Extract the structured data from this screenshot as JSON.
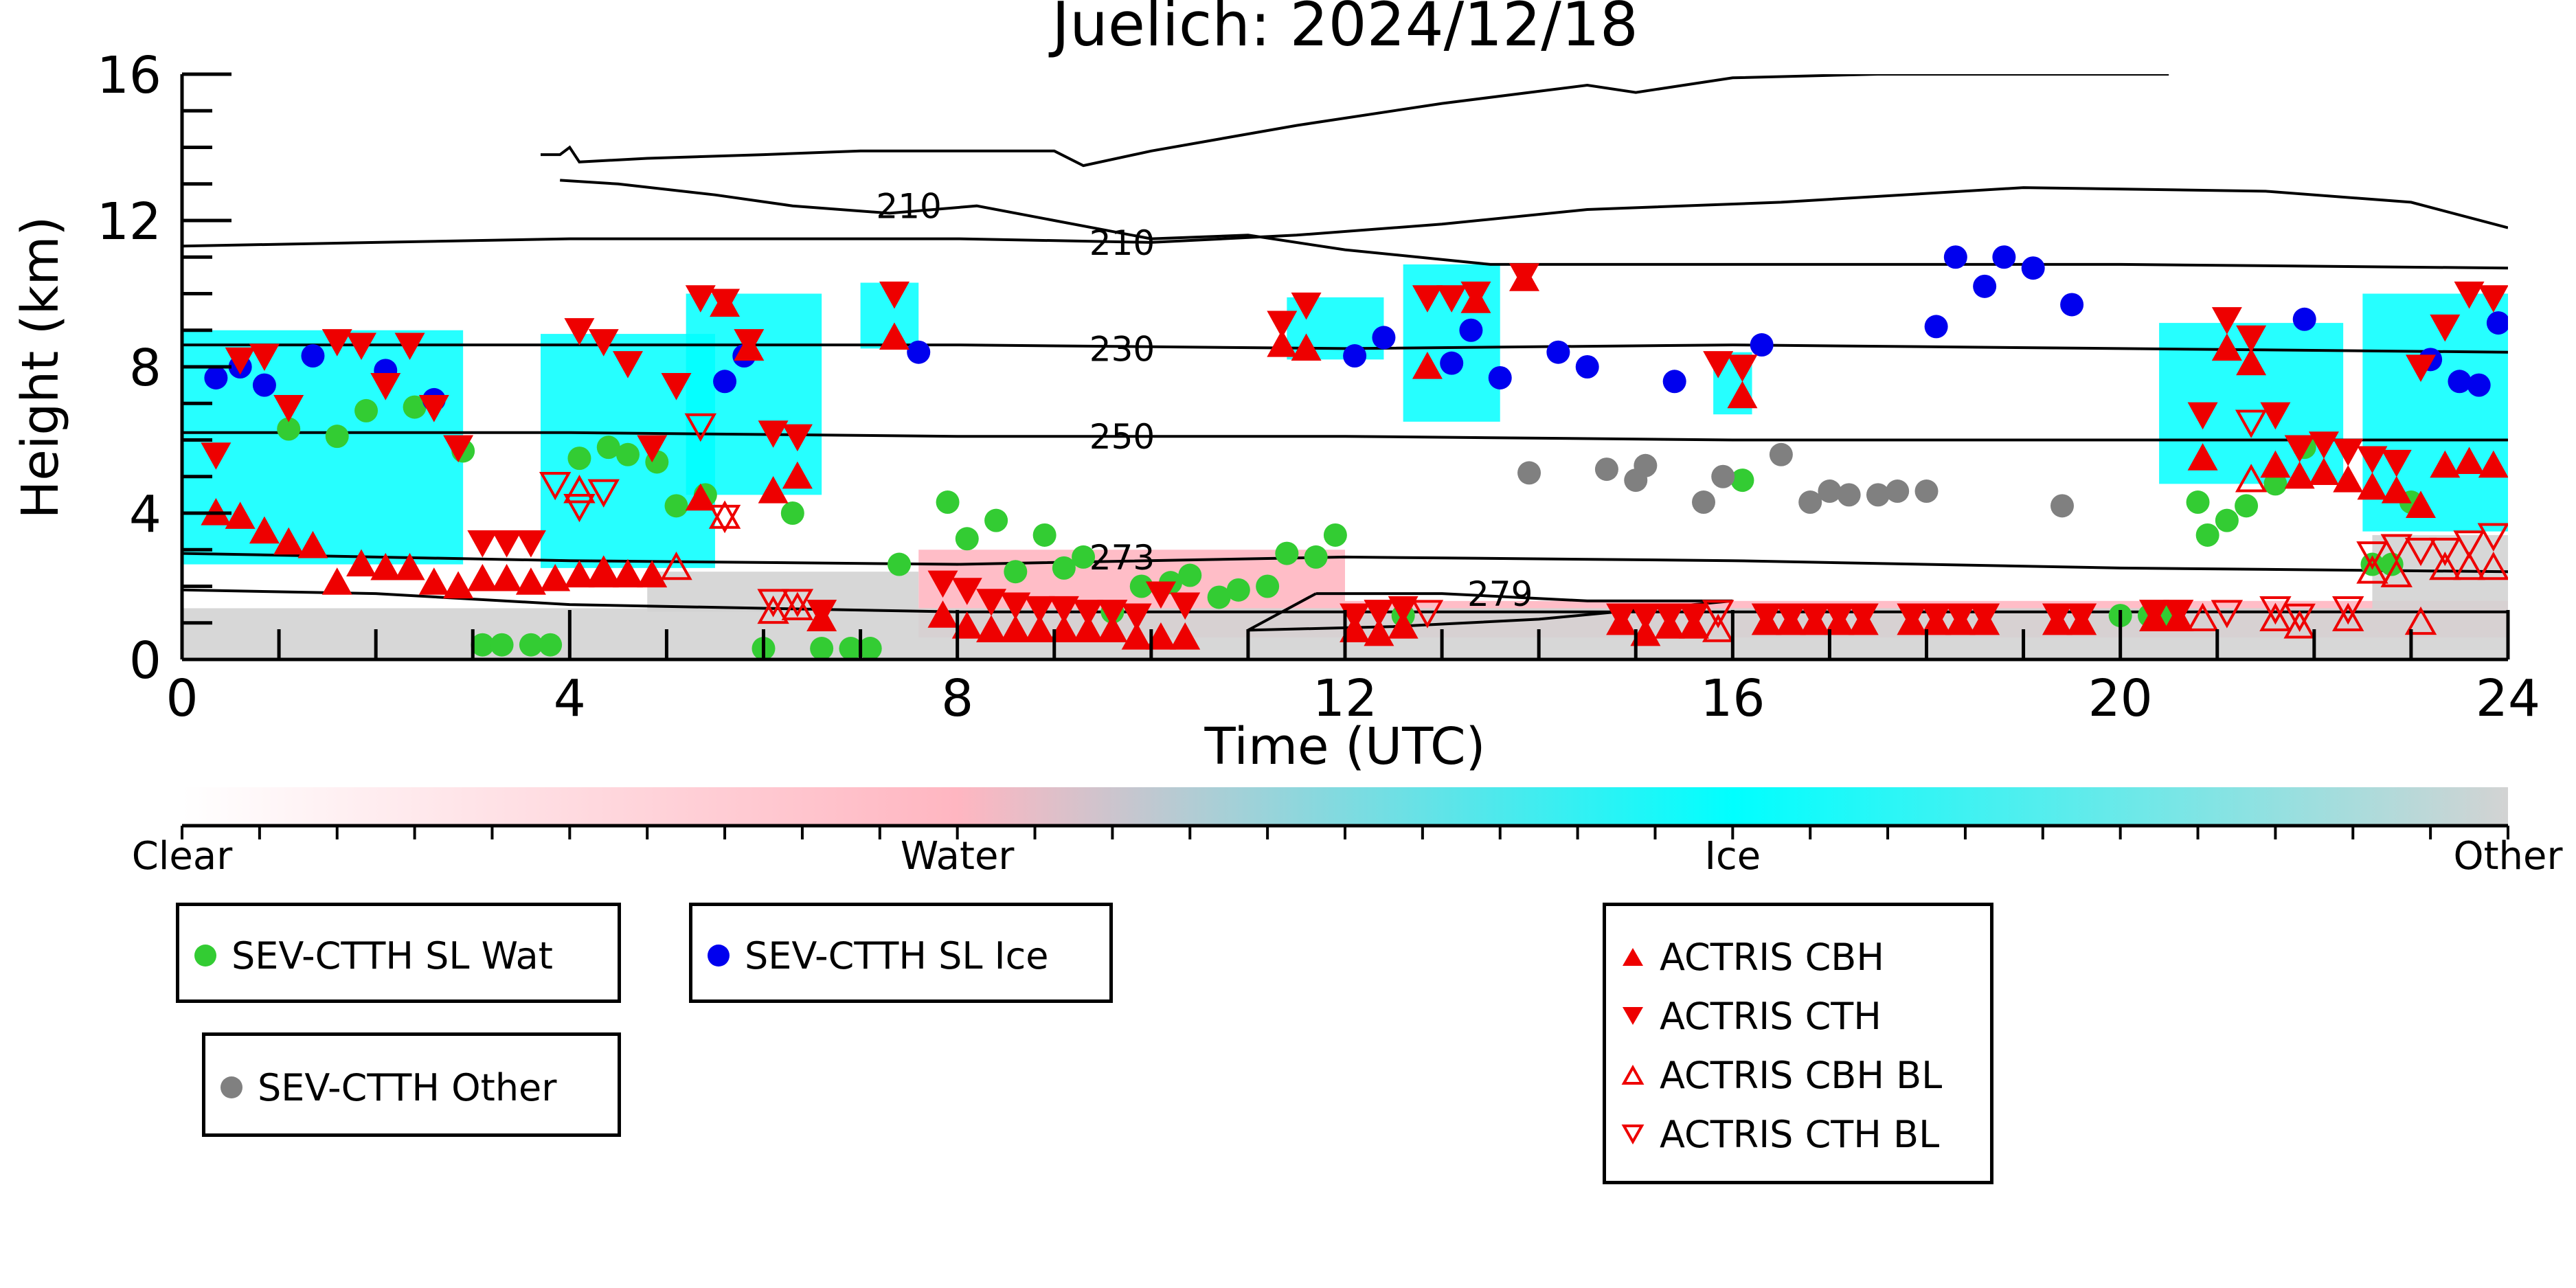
{
  "chart_data": {
    "type": "scatter",
    "title": "Juelich: 2024/12/18",
    "xlabel": "Time (UTC)",
    "ylabel": "Height (km)",
    "xlim": [
      0,
      24
    ],
    "ylim": [
      0,
      16
    ],
    "xticks": [
      0,
      4,
      8,
      12,
      16,
      20,
      24
    ],
    "yticks": [
      0,
      4,
      8,
      12,
      16
    ],
    "colorbar": {
      "ticks": [
        "Clear",
        "Water",
        "Ice",
        "Other"
      ],
      "colors": [
        "#ffffff",
        "#ffb6c1",
        "#00ffff",
        "#d3d3d3"
      ]
    },
    "background_regions": [
      {
        "class": "Ice",
        "x0": 0.0,
        "x1": 2.9,
        "y0": 2.6,
        "y1": 9.0
      },
      {
        "class": "Ice",
        "x0": 3.7,
        "x1": 5.5,
        "y0": 2.5,
        "y1": 8.9
      },
      {
        "class": "Ice",
        "x0": 5.2,
        "x1": 6.6,
        "y0": 4.5,
        "y1": 10.0
      },
      {
        "class": "Ice",
        "x0": 7.0,
        "x1": 7.6,
        "y0": 8.5,
        "y1": 10.3
      },
      {
        "class": "Ice",
        "x0": 11.4,
        "x1": 12.4,
        "y0": 8.2,
        "y1": 9.9
      },
      {
        "class": "Ice",
        "x0": 12.6,
        "x1": 13.6,
        "y0": 6.5,
        "y1": 10.8
      },
      {
        "class": "Ice",
        "x0": 15.8,
        "x1": 16.2,
        "y0": 6.7,
        "y1": 8.4
      },
      {
        "class": "Ice",
        "x0": 20.4,
        "x1": 22.3,
        "y0": 4.8,
        "y1": 9.2
      },
      {
        "class": "Ice",
        "x0": 22.5,
        "x1": 24.0,
        "y0": 3.5,
        "y1": 10.0
      },
      {
        "class": "Water",
        "x0": 7.6,
        "x1": 12.0,
        "y0": 0.6,
        "y1": 3.0
      },
      {
        "class": "Water",
        "x0": 12.0,
        "x1": 24.0,
        "y0": 0.6,
        "y1": 1.6
      },
      {
        "class": "Other",
        "x0": 0.0,
        "x1": 24.0,
        "y0": 0.0,
        "y1": 1.4
      },
      {
        "class": "Other",
        "x0": 4.8,
        "x1": 7.6,
        "y0": 1.3,
        "y1": 2.4
      },
      {
        "class": "Other",
        "x0": 22.6,
        "x1": 24.0,
        "y0": 1.4,
        "y1": 3.4
      }
    ],
    "contours": [
      {
        "label": "210",
        "label_x": 7.5,
        "label_y": 12.4,
        "points": [
          [
            3.9,
            13.1
          ],
          [
            4.5,
            13.0
          ],
          [
            5.5,
            12.7
          ],
          [
            6.3,
            12.4
          ],
          [
            7.3,
            12.2
          ],
          [
            8.2,
            12.4
          ],
          [
            9.0,
            12.0
          ],
          [
            10.0,
            11.5
          ],
          [
            11.0,
            11.6
          ],
          [
            12.0,
            11.2
          ],
          [
            13.5,
            10.8
          ],
          [
            16.0,
            10.8
          ],
          [
            20.0,
            10.8
          ],
          [
            24.0,
            10.7
          ]
        ]
      },
      {
        "label": "210",
        "label_x": 9.7,
        "label_y": 11.4,
        "points": [
          [
            0.0,
            11.3
          ],
          [
            2.0,
            11.4
          ],
          [
            4.0,
            11.5
          ],
          [
            6.0,
            11.5
          ],
          [
            8.0,
            11.5
          ],
          [
            10.0,
            11.4
          ],
          [
            11.5,
            11.6
          ],
          [
            13.0,
            11.9
          ],
          [
            14.5,
            12.3
          ],
          [
            16.5,
            12.5
          ],
          [
            19.0,
            12.9
          ],
          [
            21.5,
            12.8
          ],
          [
            23.0,
            12.5
          ],
          [
            24.0,
            11.8
          ]
        ]
      },
      {
        "label": "",
        "label_x": 0,
        "label_y": 0,
        "points": [
          [
            3.7,
            13.8
          ],
          [
            3.9,
            13.8
          ],
          [
            4.0,
            14.0
          ],
          [
            4.1,
            13.6
          ],
          [
            4.8,
            13.7
          ],
          [
            6.0,
            13.8
          ],
          [
            7.0,
            13.9
          ],
          [
            8.0,
            13.9
          ],
          [
            9.0,
            13.9
          ],
          [
            9.3,
            13.5
          ],
          [
            10.0,
            13.9
          ],
          [
            11.5,
            14.6
          ],
          [
            13.0,
            15.2
          ],
          [
            14.5,
            15.7
          ],
          [
            15.0,
            15.5
          ],
          [
            16.0,
            15.9
          ],
          [
            17.5,
            16.0
          ],
          [
            20.5,
            16.0
          ]
        ]
      },
      {
        "label": "230",
        "label_x": 9.7,
        "label_y": 8.5,
        "points": [
          [
            0.0,
            8.6
          ],
          [
            4.0,
            8.6
          ],
          [
            8.0,
            8.6
          ],
          [
            12.0,
            8.5
          ],
          [
            16.0,
            8.6
          ],
          [
            20.0,
            8.5
          ],
          [
            24.0,
            8.4
          ]
        ]
      },
      {
        "label": "250",
        "label_x": 9.7,
        "label_y": 6.1,
        "points": [
          [
            0.0,
            6.2
          ],
          [
            4.0,
            6.2
          ],
          [
            8.0,
            6.1
          ],
          [
            12.0,
            6.1
          ],
          [
            16.0,
            6.0
          ],
          [
            20.0,
            6.0
          ],
          [
            24.0,
            6.0
          ]
        ]
      },
      {
        "label": "273",
        "label_x": 9.7,
        "label_y": 2.8,
        "points": [
          [
            0.0,
            2.9
          ],
          [
            4.0,
            2.7
          ],
          [
            8.0,
            2.6
          ],
          [
            12.0,
            2.8
          ],
          [
            16.0,
            2.7
          ],
          [
            20.0,
            2.5
          ],
          [
            24.0,
            2.4
          ]
        ]
      },
      {
        "label": "279",
        "label_x": 13.6,
        "label_y": 1.8,
        "points": [
          [
            0.0,
            1.9
          ],
          [
            2.0,
            1.8
          ],
          [
            4.0,
            1.5
          ],
          [
            6.0,
            1.4
          ],
          [
            8.0,
            1.3
          ],
          [
            10.0,
            1.3
          ],
          [
            12.0,
            1.3
          ],
          [
            16.0,
            1.3
          ],
          [
            20.0,
            1.3
          ],
          [
            24.0,
            1.3
          ]
        ]
      },
      {
        "label": "",
        "label_x": 0,
        "label_y": 0,
        "points": [
          [
            11.7,
            1.8
          ],
          [
            13.0,
            1.8
          ],
          [
            14.5,
            1.6
          ],
          [
            16.0,
            1.6
          ],
          [
            14.0,
            1.1
          ],
          [
            12.5,
            0.9
          ],
          [
            11.0,
            0.8
          ],
          [
            11.7,
            1.8
          ]
        ]
      }
    ],
    "series": [
      {
        "name": "SEV-CTTH SL Wat",
        "marker": "circle",
        "color": "#33cc33",
        "x": [
          1.1,
          1.6,
          1.9,
          2.4,
          2.9,
          3.1,
          3.3,
          3.6,
          3.8,
          4.1,
          4.4,
          4.6,
          4.9,
          5.1,
          5.4,
          6.0,
          6.3,
          6.6,
          6.9,
          7.1,
          7.4,
          7.9,
          8.1,
          8.4,
          8.6,
          8.9,
          9.1,
          9.3,
          9.6,
          9.9,
          10.2,
          10.4,
          10.7,
          10.9,
          11.2,
          11.4,
          11.7,
          11.9,
          12.6,
          16.1,
          20.0,
          20.3,
          20.5,
          20.8,
          20.9,
          21.1,
          21.3,
          21.6,
          21.9,
          22.6,
          22.8,
          23.0
        ],
        "y": [
          6.3,
          6.1,
          6.8,
          6.9,
          5.7,
          0.4,
          0.4,
          0.4,
          0.4,
          5.5,
          5.8,
          5.6,
          5.4,
          4.2,
          4.5,
          0.3,
          4.0,
          0.3,
          0.3,
          0.3,
          2.6,
          4.3,
          3.3,
          3.8,
          2.4,
          3.4,
          2.5,
          2.8,
          1.3,
          2.0,
          2.1,
          2.3,
          1.7,
          1.9,
          2.0,
          2.9,
          2.8,
          3.4,
          1.2,
          4.9,
          1.2,
          1.2,
          1.2,
          4.3,
          3.4,
          3.8,
          4.2,
          4.8,
          5.8,
          2.6,
          2.6,
          4.3
        ]
      },
      {
        "name": "SEV-CTTH SL Ice",
        "marker": "circle",
        "color": "#0000ee",
        "x": [
          0.35,
          0.6,
          0.85,
          1.35,
          2.1,
          2.6,
          5.6,
          5.8,
          7.6,
          12.1,
          12.4,
          13.1,
          13.3,
          13.6,
          14.2,
          14.5,
          15.4,
          16.3,
          18.1,
          18.3,
          18.6,
          18.8,
          19.1,
          19.5,
          21.9,
          23.2,
          23.5,
          23.7,
          23.9
        ],
        "y": [
          7.7,
          8.0,
          7.5,
          8.3,
          7.9,
          7.1,
          7.6,
          8.3,
          8.4,
          8.3,
          8.8,
          8.1,
          9.0,
          7.7,
          8.4,
          8.0,
          7.6,
          8.6,
          9.1,
          11.0,
          10.2,
          11.0,
          10.7,
          9.7,
          9.3,
          8.2,
          7.6,
          7.5,
          9.2
        ]
      },
      {
        "name": "SEV-CTTH Other",
        "marker": "circle",
        "color": "#808080",
        "x": [
          13.9,
          14.7,
          15.0,
          15.1,
          15.7,
          15.9,
          16.5,
          16.8,
          17.0,
          17.2,
          17.5,
          17.7,
          18.0,
          19.4
        ],
        "y": [
          5.1,
          5.2,
          4.9,
          5.3,
          4.3,
          5.0,
          5.6,
          4.3,
          4.6,
          4.5,
          4.5,
          4.6,
          4.6,
          4.2
        ]
      },
      {
        "name": "ACTRIS CBH",
        "marker": "triangle-up",
        "color": "#ee0000",
        "x": [
          0.35,
          0.6,
          0.85,
          1.1,
          1.35,
          1.6,
          1.85,
          2.1,
          2.35,
          2.6,
          2.85,
          3.1,
          3.35,
          3.6,
          3.85,
          4.1,
          4.35,
          4.6,
          4.85,
          5.35,
          5.6,
          5.85,
          6.1,
          6.35,
          6.6,
          7.35,
          7.85,
          8.1,
          8.35,
          8.6,
          8.85,
          9.1,
          9.35,
          9.6,
          9.85,
          10.1,
          10.35,
          11.35,
          11.6,
          12.1,
          12.35,
          12.6,
          12.85,
          13.35,
          13.85,
          14.85,
          15.1,
          15.35,
          15.6,
          16.1,
          16.35,
          16.6,
          16.85,
          17.1,
          17.35,
          17.85,
          18.1,
          18.35,
          18.6,
          19.35,
          19.6,
          20.35,
          20.6,
          20.85,
          21.1,
          21.35,
          21.6,
          21.85,
          22.1,
          22.35,
          22.6,
          22.85,
          23.1,
          23.35,
          23.6,
          23.85
        ],
        "y": [
          4.0,
          3.9,
          3.5,
          3.2,
          3.1,
          2.1,
          2.6,
          2.5,
          2.5,
          2.1,
          2.0,
          2.2,
          2.2,
          2.1,
          2.2,
          2.3,
          2.3,
          2.3,
          2.3,
          4.4,
          9.7,
          8.5,
          4.6,
          5.0,
          1.1,
          8.8,
          1.2,
          0.9,
          0.8,
          0.8,
          0.8,
          0.8,
          0.8,
          0.8,
          0.6,
          0.6,
          0.6,
          8.6,
          8.5,
          0.8,
          0.7,
          0.9,
          8.0,
          9.8,
          10.4,
          1.0,
          0.7,
          0.9,
          0.9,
          7.2,
          1.0,
          1.0,
          1.0,
          1.0,
          1.0,
          1.0,
          1.0,
          1.0,
          1.0,
          1.0,
          1.0,
          1.1,
          1.1,
          5.5,
          8.5,
          8.1,
          5.3,
          5.0,
          5.1,
          4.9,
          4.7,
          4.6,
          4.2,
          5.3,
          5.4,
          5.3
        ]
      },
      {
        "name": "ACTRIS CTH",
        "marker": "triangle-down",
        "color": "#ee0000",
        "x": [
          0.35,
          0.6,
          0.85,
          1.1,
          1.6,
          1.85,
          2.1,
          2.35,
          2.6,
          2.85,
          3.1,
          3.35,
          3.6,
          4.1,
          4.35,
          4.6,
          4.85,
          5.1,
          5.35,
          5.6,
          5.85,
          6.1,
          6.35,
          6.6,
          7.35,
          7.85,
          8.1,
          8.35,
          8.6,
          8.85,
          9.1,
          9.35,
          9.6,
          9.85,
          10.1,
          10.35,
          11.35,
          11.6,
          12.1,
          12.35,
          12.6,
          12.85,
          13.1,
          13.35,
          13.85,
          14.85,
          15.1,
          15.35,
          15.6,
          15.85,
          16.1,
          16.35,
          16.6,
          16.85,
          17.1,
          17.35,
          17.85,
          18.1,
          18.35,
          18.6,
          19.35,
          19.6,
          20.35,
          20.6,
          20.85,
          21.1,
          21.35,
          21.6,
          21.85,
          22.1,
          22.35,
          22.6,
          22.85,
          23.1,
          23.35,
          23.6,
          23.85
        ],
        "y": [
          5.6,
          8.2,
          8.3,
          6.9,
          8.7,
          8.6,
          7.5,
          8.6,
          6.9,
          5.8,
          3.2,
          3.2,
          3.2,
          9.0,
          8.7,
          8.1,
          5.8,
          7.5,
          9.9,
          9.8,
          8.7,
          6.2,
          6.1,
          1.3,
          10.0,
          2.1,
          1.9,
          1.6,
          1.5,
          1.4,
          1.4,
          1.3,
          1.3,
          1.2,
          1.8,
          1.5,
          9.2,
          9.7,
          1.2,
          1.3,
          1.4,
          9.9,
          9.9,
          10.0,
          10.5,
          1.2,
          1.2,
          1.2,
          1.2,
          8.1,
          8.0,
          1.2,
          1.2,
          1.2,
          1.2,
          1.2,
          1.2,
          1.2,
          1.2,
          1.2,
          1.2,
          1.2,
          1.3,
          1.3,
          6.7,
          9.3,
          8.8,
          6.7,
          5.8,
          5.9,
          5.7,
          5.5,
          5.4,
          8.0,
          9.1,
          10.0,
          9.9
        ]
      },
      {
        "name": "ACTRIS CBH BL",
        "marker": "triangle-up-open",
        "color": "#ee0000",
        "x": [
          4.1,
          4.35,
          4.6,
          5.1,
          5.6,
          6.1,
          6.35,
          15.85,
          20.85,
          21.35,
          21.6,
          21.85,
          22.35,
          22.6,
          22.85,
          23.1,
          23.35,
          23.6,
          23.85
        ],
        "y": [
          4.6,
          2.4,
          2.3,
          2.5,
          3.9,
          1.3,
          1.4,
          0.8,
          1.1,
          4.9,
          1.1,
          0.9,
          1.1,
          2.4,
          2.3,
          1.0,
          2.5,
          2.5,
          2.5
        ]
      },
      {
        "name": "ACTRIS CTH BL",
        "marker": "triangle-down-open",
        "color": "#ee0000",
        "x": [
          3.85,
          4.1,
          4.35,
          5.35,
          5.6,
          6.1,
          6.35,
          12.85,
          15.85,
          21.1,
          21.35,
          21.6,
          21.85,
          22.35,
          22.6,
          22.85,
          23.1,
          23.35,
          23.6,
          23.85
        ],
        "y": [
          4.8,
          4.2,
          4.6,
          6.4,
          3.9,
          1.6,
          1.6,
          1.3,
          1.3,
          1.3,
          6.5,
          1.4,
          1.2,
          1.4,
          2.9,
          3.1,
          3.0,
          3.0,
          3.2,
          3.4
        ]
      }
    ]
  },
  "legend": {
    "wat": "SEV-CTTH SL Wat",
    "ice": "SEV-CTTH SL Ice",
    "other": "SEV-CTTH Other",
    "cbh": "ACTRIS CBH",
    "cth": "ACTRIS CTH",
    "cbh_bl": "ACTRIS CBH BL",
    "cth_bl": "ACTRIS CTH BL"
  }
}
